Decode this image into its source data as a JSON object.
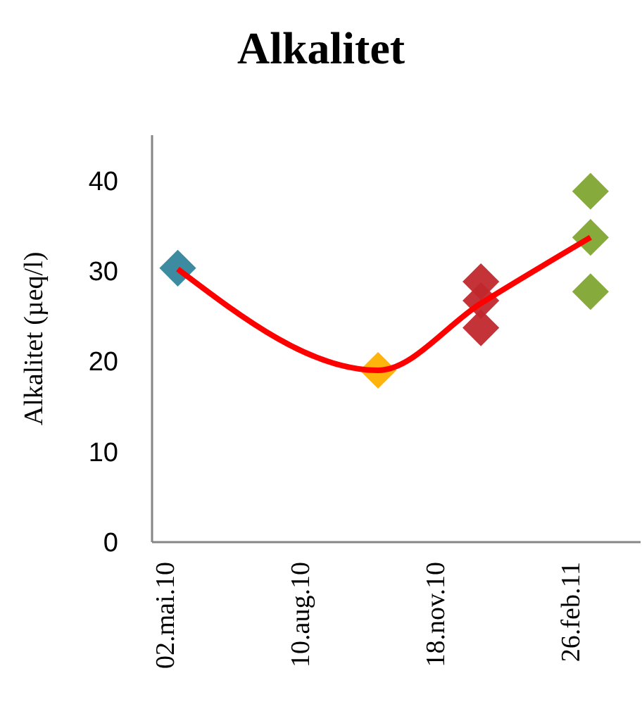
{
  "chart_data": {
    "type": "scatter",
    "title": "Alkalitet",
    "ylabel": "Alkalitet (µeq/l)",
    "marker": "diamond",
    "grid": false,
    "xlim": [
      "2010-04-23",
      "2011-04-19"
    ],
    "xticks": [
      {
        "value": "2010-05-02",
        "label": "02.mai.10"
      },
      {
        "value": "2010-08-10",
        "label": "10.aug.10"
      },
      {
        "value": "2010-11-18",
        "label": "18.nov.10"
      },
      {
        "value": "2011-02-26",
        "label": "26.feb.11"
      }
    ],
    "ylim": [
      0,
      45
    ],
    "yticks": [
      0,
      10,
      20,
      30,
      40
    ],
    "series": [
      {
        "type": "line",
        "marker": "none",
        "color": "#ff0000",
        "x": [
          "2010-05-12",
          "2010-10-07",
          "2010-12-22",
          "2011-03-13"
        ],
        "values": [
          30.2,
          19,
          26.4,
          33.7
        ]
      },
      {
        "color": "#31859c",
        "x": [
          "2010-05-12"
        ],
        "values": [
          30.3
        ]
      },
      {
        "color": "#ffb000",
        "x": [
          "2010-10-07"
        ],
        "values": [
          19
        ]
      },
      {
        "color": "#c0282d",
        "x": [
          "2010-12-22",
          "2010-12-22",
          "2010-12-22"
        ],
        "values": [
          28.8,
          26.7,
          23.7
        ]
      },
      {
        "color": "#7fa632",
        "x": [
          "2011-03-13",
          "2011-03-13",
          "2011-03-13"
        ],
        "values": [
          38.8,
          33.7,
          27.7
        ]
      }
    ]
  }
}
